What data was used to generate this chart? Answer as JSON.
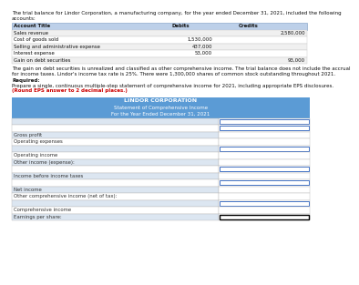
{
  "intro_text_line1": "The trial balance for Lindor Corporation, a manufacturing company, for the year ended December 31, 2021, included the following",
  "intro_text_line2": "accounts:",
  "table_header": [
    "Account Title",
    "Debits",
    "Credits"
  ],
  "table_rows": [
    [
      "Sales revenue",
      "",
      "2,580,000"
    ],
    [
      "Cost of goods sold",
      "1,530,000",
      ""
    ],
    [
      "Selling and administrative expense",
      "437,000",
      ""
    ],
    [
      "Interest expense",
      "53,000",
      ""
    ],
    [
      "Gain on debt securities",
      "",
      "93,000"
    ]
  ],
  "note_line1": "The gain on debt securities is unrealized and classified as other comprehensive income. The trial balance does not include the accrual",
  "note_line2": "for income taxes. Lindor's income tax rate is 25%. There were 1,300,000 shares of common stock outstanding throughout 2021.",
  "req_label": "Required:",
  "req_line1": "Prepare a single, continuous multiple-step statement of comprehensive income for 2021, including appropriate EPS disclosures.",
  "req_line2": "(Round EPS answer to 2 decimal places.)",
  "req_line2_color": "#cc0000",
  "stmt_title1": "LINDOR CORPORATION",
  "stmt_title2": "Statement of Comprehensive Income",
  "stmt_title3": "For the Year Ended December 31, 2021",
  "header_bg": "#5b9bd5",
  "header_text_color": "#ffffff",
  "input_border_blue": "#4472c4",
  "input_border_black": "#000000",
  "row_light": "#dce6f1",
  "row_white": "#ffffff",
  "table_header_bg": "#bdd0e9",
  "table_border": "#8eaacc",
  "statement_rows": [
    {
      "label": "",
      "input": true,
      "blue": true
    },
    {
      "label": "",
      "input": true,
      "blue": true
    },
    {
      "label": "Gross profit",
      "input": false,
      "blue": false
    },
    {
      "label": "Operating expenses",
      "input": false,
      "blue": false
    },
    {
      "label": "",
      "input": true,
      "blue": true
    },
    {
      "label": "Operating income",
      "input": false,
      "blue": false
    },
    {
      "label": "Other income (expense):",
      "input": false,
      "blue": false
    },
    {
      "label": "",
      "input": true,
      "blue": true
    },
    {
      "label": "Income before income taxes",
      "input": false,
      "blue": false
    },
    {
      "label": "",
      "input": true,
      "blue": true
    },
    {
      "label": "Net income",
      "input": false,
      "blue": false
    },
    {
      "label": "Other comprehensive income (net of tax):",
      "input": false,
      "blue": false
    },
    {
      "label": "",
      "input": true,
      "blue": true
    },
    {
      "label": "Comprehensive income",
      "input": false,
      "blue": false
    },
    {
      "label": "Earnings per share:",
      "input": false,
      "blue": false,
      "last": true
    }
  ]
}
